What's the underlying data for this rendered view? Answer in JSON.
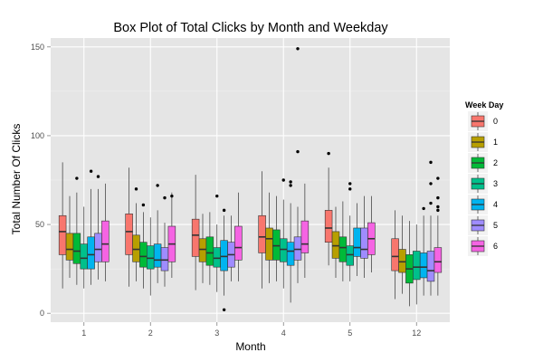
{
  "chart_data": {
    "type": "boxplot",
    "title": "Box Plot of Total Clicks by Month and Weekday",
    "xlabel": "Month",
    "ylabel": "Total Number Of Clicks",
    "ylim": [
      -5,
      155
    ],
    "yticks": [
      0,
      50,
      100,
      150
    ],
    "grid": true,
    "legend": {
      "title": "Week Day",
      "placement": "right"
    },
    "categories": [
      "1",
      "2",
      "3",
      "4",
      "5",
      "12"
    ],
    "series": [
      {
        "name": "0",
        "color": "#F8766D",
        "boxes": [
          {
            "min": 14,
            "q1": 33,
            "median": 46,
            "q3": 55,
            "max": 85,
            "outliers": []
          },
          {
            "min": 15,
            "q1": 33,
            "median": 46,
            "q3": 56,
            "max": 82,
            "outliers": []
          },
          {
            "min": 13,
            "q1": 32,
            "median": 44,
            "q3": 53,
            "max": 78,
            "outliers": []
          },
          {
            "min": 14,
            "q1": 34,
            "median": 43,
            "q3": 55,
            "max": 80,
            "outliers": []
          },
          {
            "min": 27,
            "q1": 40,
            "median": 48,
            "q3": 58,
            "max": 82,
            "outliers": [
              90
            ]
          },
          {
            "min": 8,
            "q1": 24,
            "median": 32,
            "q3": 42,
            "max": 58,
            "outliers": []
          }
        ]
      },
      {
        "name": "1",
        "color": "#B79F00",
        "boxes": [
          {
            "min": 20,
            "q1": 30,
            "median": 36,
            "q3": 45,
            "max": 66,
            "outliers": []
          },
          {
            "min": 18,
            "q1": 29,
            "median": 36,
            "q3": 44,
            "max": 62,
            "outliers": [
              70
            ]
          },
          {
            "min": 17,
            "q1": 29,
            "median": 36,
            "q3": 42,
            "max": 56,
            "outliers": []
          },
          {
            "min": 17,
            "q1": 30,
            "median": 42,
            "q3": 48,
            "max": 68,
            "outliers": []
          },
          {
            "min": 20,
            "q1": 31,
            "median": 38,
            "q3": 46,
            "max": 60,
            "outliers": []
          },
          {
            "min": 11,
            "q1": 23,
            "median": 29,
            "q3": 36,
            "max": 55,
            "outliers": []
          }
        ]
      },
      {
        "name": "2",
        "color": "#00BA38",
        "boxes": [
          {
            "min": 16,
            "q1": 28,
            "median": 35,
            "q3": 45,
            "max": 68,
            "outliers": [
              76
            ]
          },
          {
            "min": 14,
            "q1": 26,
            "median": 32,
            "q3": 40,
            "max": 57,
            "outliers": [
              61
            ]
          },
          {
            "min": 16,
            "q1": 27,
            "median": 34,
            "q3": 43,
            "max": 57,
            "outliers": []
          },
          {
            "min": 18,
            "q1": 30,
            "median": 38,
            "q3": 47,
            "max": 66,
            "outliers": []
          },
          {
            "min": 18,
            "q1": 29,
            "median": 37,
            "q3": 43,
            "max": 63,
            "outliers": []
          },
          {
            "min": 4,
            "q1": 17,
            "median": 25,
            "q3": 33,
            "max": 52,
            "outliers": []
          }
        ]
      },
      {
        "name": "3",
        "color": "#00C08B",
        "boxes": [
          {
            "min": 14,
            "q1": 25,
            "median": 31,
            "q3": 39,
            "max": 60,
            "outliers": []
          },
          {
            "min": 10,
            "q1": 25,
            "median": 31,
            "q3": 38,
            "max": 54,
            "outliers": []
          },
          {
            "min": 12,
            "q1": 26,
            "median": 31,
            "q3": 37,
            "max": 50,
            "outliers": [
              66
            ]
          },
          {
            "min": 14,
            "q1": 29,
            "median": 36,
            "q3": 42,
            "max": 64,
            "outliers": [
              75
            ]
          },
          {
            "min": 18,
            "q1": 27,
            "median": 33,
            "q3": 38,
            "max": 55,
            "outliers": [
              70,
              73
            ]
          },
          {
            "min": 5,
            "q1": 19,
            "median": 26,
            "q3": 35,
            "max": 50,
            "outliers": []
          }
        ]
      },
      {
        "name": "4",
        "color": "#00B4EF",
        "boxes": [
          {
            "min": 16,
            "q1": 25,
            "median": 33,
            "q3": 43,
            "max": 70,
            "outliers": [
              80
            ]
          },
          {
            "min": 17,
            "q1": 26,
            "median": 30,
            "q3": 39,
            "max": 58,
            "outliers": [
              72
            ]
          },
          {
            "min": 10,
            "q1": 24,
            "median": 32,
            "q3": 41,
            "max": 55,
            "outliers": [
              2,
              58
            ]
          },
          {
            "min": 6,
            "q1": 27,
            "median": 35,
            "q3": 40,
            "max": 62,
            "outliers": [
              72,
              74
            ]
          },
          {
            "min": 21,
            "q1": 32,
            "median": 37,
            "q3": 48,
            "max": 62,
            "outliers": []
          },
          {
            "min": 10,
            "q1": 20,
            "median": 26,
            "q3": 34,
            "max": 55,
            "outliers": [
              59
            ]
          }
        ]
      },
      {
        "name": "5",
        "color": "#9F8CFF",
        "boxes": [
          {
            "min": 19,
            "q1": 29,
            "median": 36,
            "q3": 45,
            "max": 70,
            "outliers": [
              77
            ]
          },
          {
            "min": 15,
            "q1": 24,
            "median": 30,
            "q3": 37,
            "max": 51,
            "outliers": [
              65
            ]
          },
          {
            "min": 18,
            "q1": 26,
            "median": 33,
            "q3": 40,
            "max": 55,
            "outliers": []
          },
          {
            "min": 17,
            "q1": 30,
            "median": 36,
            "q3": 43,
            "max": 60,
            "outliers": [
              91,
              149
            ]
          },
          {
            "min": 20,
            "q1": 31,
            "median": 36,
            "q3": 48,
            "max": 66,
            "outliers": []
          },
          {
            "min": 10,
            "q1": 18,
            "median": 24,
            "q3": 35,
            "max": 55,
            "outliers": [
              62,
              73,
              85
            ]
          }
        ]
      },
      {
        "name": "6",
        "color": "#F564E3",
        "boxes": [
          {
            "min": 18,
            "q1": 29,
            "median": 39,
            "q3": 52,
            "max": 73,
            "outliers": []
          },
          {
            "min": 20,
            "q1": 29,
            "median": 39,
            "q3": 49,
            "max": 68,
            "outliers": [
              66
            ]
          },
          {
            "min": 18,
            "q1": 30,
            "median": 37,
            "q3": 49,
            "max": 68,
            "outliers": []
          },
          {
            "min": 20,
            "q1": 34,
            "median": 39,
            "q3": 52,
            "max": 73,
            "outliers": []
          },
          {
            "min": 23,
            "q1": 33,
            "median": 42,
            "q3": 51,
            "max": 66,
            "outliers": []
          },
          {
            "min": 10,
            "q1": 23,
            "median": 29,
            "q3": 37,
            "max": 55,
            "outliers": [
              58,
              60,
              65,
              76
            ]
          }
        ]
      }
    ]
  }
}
